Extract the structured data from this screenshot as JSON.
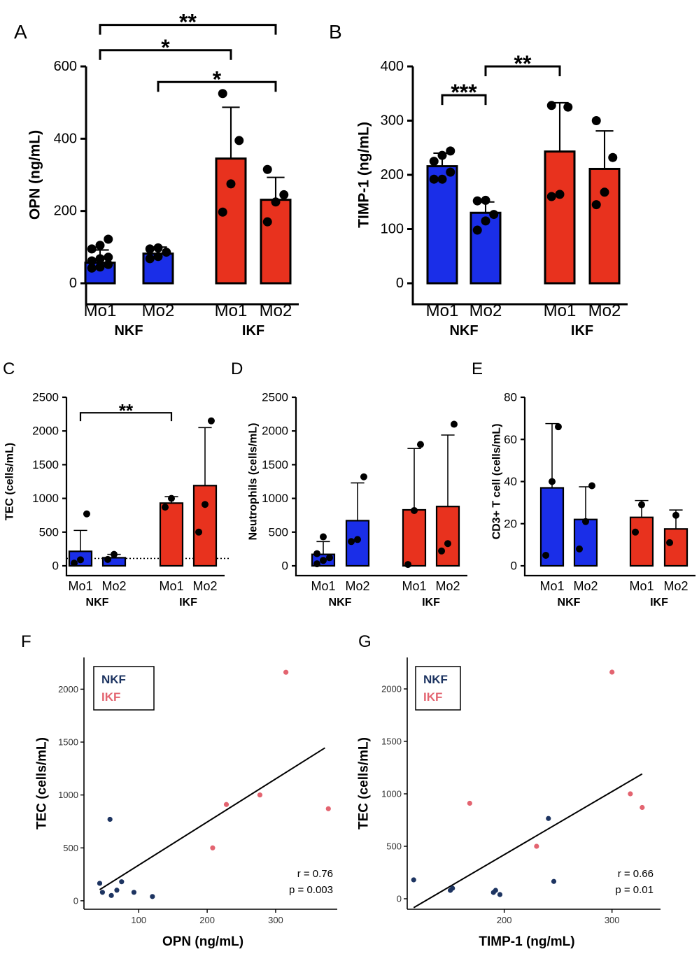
{
  "colors": {
    "nkf": "#1a2ee8",
    "ikf": "#e8321e",
    "nkf_point": "#1d3461",
    "ikf_point": "#e36470",
    "ink": "#000000"
  },
  "chart_data": [
    {
      "id": "A",
      "panel_label": "A",
      "type": "bar",
      "ylabel": "OPN (ng/mL)",
      "ylim": [
        0,
        600
      ],
      "yticks": [
        "0",
        "200",
        "400",
        "600"
      ],
      "groups": [
        "NKF",
        "IKF"
      ],
      "categories": [
        "Mo1",
        "Mo2",
        "Mo1",
        "Mo2"
      ],
      "bars": [
        {
          "group": "NKF",
          "cat": "Mo1",
          "mean": 57,
          "sd": 35,
          "points": [
            42,
            45,
            52,
            62,
            68,
            72,
            95,
            105,
            122
          ]
        },
        {
          "group": "NKF",
          "cat": "Mo2",
          "mean": 82,
          "sd": 18,
          "points": [
            68,
            74,
            86,
            95,
            98
          ]
        },
        {
          "group": "IKF",
          "cat": "Mo1",
          "mean": 345,
          "sd": 142,
          "points": [
            197,
            275,
            395,
            525
          ]
        },
        {
          "group": "IKF",
          "cat": "Mo2",
          "mean": 231,
          "sd": 62,
          "points": [
            170,
            225,
            245,
            315
          ]
        }
      ],
      "significance": [
        {
          "from": 0,
          "to": 2,
          "label": "*",
          "y": 645
        },
        {
          "from": 1,
          "to": 3,
          "label": "*",
          "y": 557
        },
        {
          "from": 0,
          "to": 3,
          "label": "**",
          "y": 715
        }
      ]
    },
    {
      "id": "B",
      "panel_label": "B",
      "type": "bar",
      "ylabel": "TIMP-1 (ng/mL)",
      "ylim": [
        0,
        400
      ],
      "yticks": [
        "0",
        "100",
        "200",
        "300",
        "400"
      ],
      "groups": [
        "NKF",
        "IKF"
      ],
      "categories": [
        "Mo1",
        "Mo2",
        "Mo1",
        "Mo2"
      ],
      "bars": [
        {
          "group": "NKF",
          "cat": "Mo1",
          "mean": 216,
          "sd": 24,
          "points": [
            192,
            192,
            205,
            225,
            236,
            244
          ]
        },
        {
          "group": "NKF",
          "cat": "Mo2",
          "mean": 130,
          "sd": 20,
          "points": [
            98,
            115,
            127,
            152,
            153
          ]
        },
        {
          "group": "IKF",
          "cat": "Mo1",
          "mean": 243,
          "sd": 90,
          "points": [
            160,
            164,
            325,
            328
          ]
        },
        {
          "group": "IKF",
          "cat": "Mo2",
          "mean": 211,
          "sd": 70,
          "points": [
            145,
            168,
            232,
            300
          ]
        }
      ],
      "significance": [
        {
          "from": 0,
          "to": 1,
          "label": "***",
          "y": 347
        },
        {
          "from": 1,
          "to": 2,
          "label": "**",
          "y": 400
        }
      ]
    },
    {
      "id": "C",
      "panel_label": "C",
      "type": "bar",
      "ylabel": "TEC (cells/mL)",
      "ylim": [
        0,
        2500
      ],
      "yticks": [
        "0",
        "500",
        "1000",
        "1500",
        "2000",
        "2500"
      ],
      "groups": [
        "NKF",
        "IKF"
      ],
      "categories": [
        "Mo1",
        "Mo2",
        "Mo1",
        "Mo2"
      ],
      "reference_line": 110,
      "bars": [
        {
          "group": "NKF",
          "cat": "Mo1",
          "mean": 215,
          "sd": 310,
          "points": [
            40,
            90,
            770
          ]
        },
        {
          "group": "NKF",
          "cat": "Mo2",
          "mean": 120,
          "sd": 50,
          "points": [
            95,
            170
          ]
        },
        {
          "group": "IKF",
          "cat": "Mo1",
          "mean": 930,
          "sd": 95,
          "points": [
            870,
            1000
          ]
        },
        {
          "group": "IKF",
          "cat": "Mo2",
          "mean": 1190,
          "sd": 860,
          "points": [
            500,
            910,
            2150
          ]
        }
      ],
      "significance": [
        {
          "from": 0,
          "to": 2,
          "label": "**",
          "y": 2270
        }
      ]
    },
    {
      "id": "D",
      "panel_label": "D",
      "type": "bar",
      "ylabel": "Neutrophils (cells/mL)",
      "ylim": [
        0,
        2500
      ],
      "yticks": [
        "0",
        "500",
        "1000",
        "1500",
        "2000",
        "2500"
      ],
      "groups": [
        "NKF",
        "IKF"
      ],
      "categories": [
        "Mo1",
        "Mo2",
        "Mo1",
        "Mo2"
      ],
      "bars": [
        {
          "group": "NKF",
          "cat": "Mo1",
          "mean": 170,
          "sd": 190,
          "points": [
            30,
            80,
            120,
            180,
            430
          ]
        },
        {
          "group": "NKF",
          "cat": "Mo2",
          "mean": 670,
          "sd": 560,
          "points": [
            360,
            390,
            1320
          ]
        },
        {
          "group": "IKF",
          "cat": "Mo1",
          "mean": 830,
          "sd": 910,
          "points": [
            20,
            820,
            1800
          ]
        },
        {
          "group": "IKF",
          "cat": "Mo2",
          "mean": 880,
          "sd": 1060,
          "points": [
            220,
            330,
            2100
          ]
        }
      ],
      "significance": []
    },
    {
      "id": "E",
      "panel_label": "E",
      "type": "bar",
      "ylabel": "CD3+ T cell (cells/mL)",
      "ylim": [
        0,
        80
      ],
      "yticks": [
        "0",
        "20",
        "40",
        "60",
        "80"
      ],
      "groups": [
        "NKF",
        "IKF"
      ],
      "categories": [
        "Mo1",
        "Mo2",
        "Mo1",
        "Mo2"
      ],
      "bars": [
        {
          "group": "NKF",
          "cat": "Mo1",
          "mean": 37,
          "sd": 30.5,
          "points": [
            5,
            40,
            66
          ]
        },
        {
          "group": "NKF",
          "cat": "Mo2",
          "mean": 22,
          "sd": 15.5,
          "points": [
            8,
            21,
            38
          ]
        },
        {
          "group": "IKF",
          "cat": "Mo1",
          "mean": 23,
          "sd": 8,
          "points": [
            16,
            29
          ]
        },
        {
          "group": "IKF",
          "cat": "Mo2",
          "mean": 17.5,
          "sd": 9,
          "points": [
            11,
            24
          ]
        }
      ],
      "significance": []
    },
    {
      "id": "F",
      "panel_label": "F",
      "type": "scatter",
      "xlabel": "OPN (ng/mL)",
      "ylabel": "TEC (cells/mL)",
      "xlim": [
        20,
        390
      ],
      "ylim": [
        -80,
        2300
      ],
      "xticks": [
        "100",
        "200",
        "300"
      ],
      "yticks": [
        "0",
        "500",
        "1000",
        "1500",
        "2000"
      ],
      "legend": [
        "NKF",
        "IKF"
      ],
      "series": [
        {
          "name": "NKF",
          "points": [
            [
              43,
              165
            ],
            [
              47,
              80
            ],
            [
              58,
              770
            ],
            [
              60,
              50
            ],
            [
              68,
              100
            ],
            [
              75,
              180
            ],
            [
              93,
              80
            ],
            [
              120,
              40
            ]
          ]
        },
        {
          "name": "IKF",
          "points": [
            [
              208,
              500
            ],
            [
              228,
              910
            ],
            [
              277,
              1000
            ],
            [
              315,
              2160
            ],
            [
              377,
              870
            ]
          ]
        }
      ],
      "fit_line": [
        [
          43,
          105
        ],
        [
          372,
          1445
        ]
      ],
      "stats": [
        "r = 0.76",
        "p = 0.003"
      ]
    },
    {
      "id": "G",
      "panel_label": "G",
      "type": "scatter",
      "xlabel": "TIMP-1 (ng/mL)",
      "ylabel": "TEC (cells/mL)",
      "xlim": [
        110,
        345
      ],
      "ylim": [
        -100,
        2300
      ],
      "xticks": [
        "200",
        "300"
      ],
      "yticks": [
        "0",
        "500",
        "1000",
        "1500",
        "2000"
      ],
      "legend": [
        "NKF",
        "IKF"
      ],
      "series": [
        {
          "name": "NKF",
          "points": [
            [
              116,
              180
            ],
            [
              150,
              80
            ],
            [
              152,
              100
            ],
            [
              190,
              60
            ],
            [
              192,
              80
            ],
            [
              196,
              40
            ],
            [
              241,
              765
            ],
            [
              246,
              165
            ]
          ]
        },
        {
          "name": "IKF",
          "points": [
            [
              168,
              910
            ],
            [
              230,
              500
            ],
            [
              300,
              2160
            ],
            [
              317,
              1000
            ],
            [
              328,
              870
            ]
          ]
        }
      ],
      "fit_line": [
        [
          116,
          -85
        ],
        [
          328,
          1190
        ]
      ],
      "stats": [
        "r = 0.66",
        "p = 0.01"
      ]
    }
  ]
}
